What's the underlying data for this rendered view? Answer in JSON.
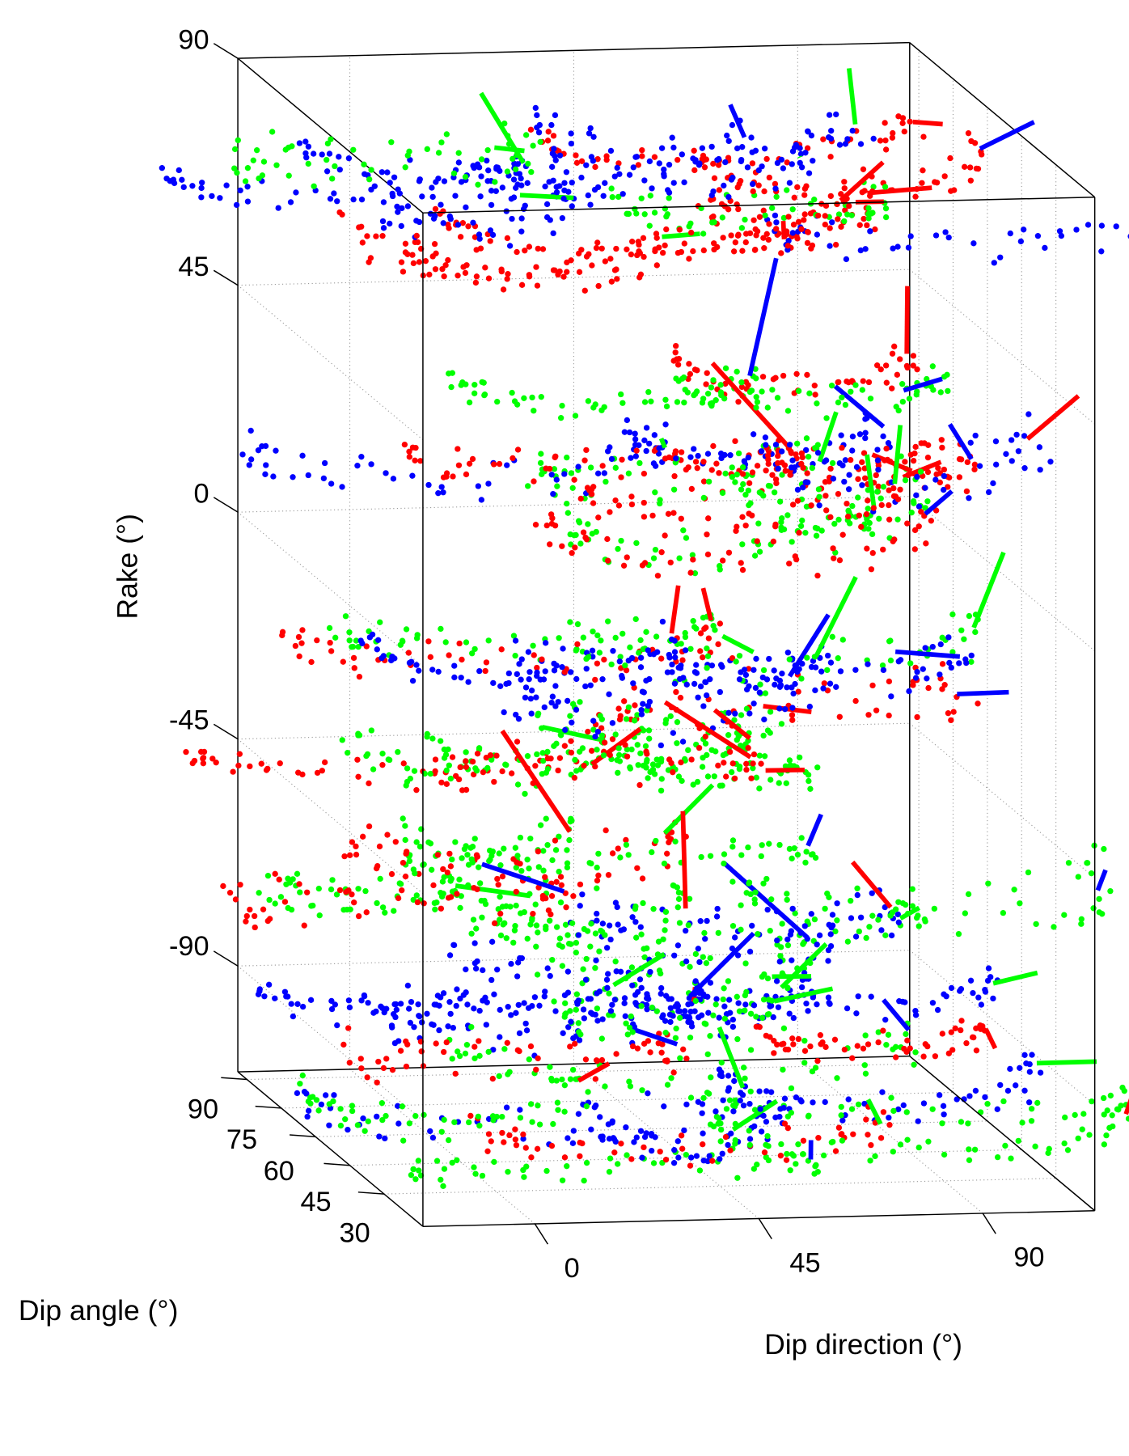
{
  "chart_data": {
    "type": "scatter",
    "projection": "3d",
    "title": "",
    "grid": true,
    "legend": "none",
    "axes": {
      "x": {
        "label": "Dip direction (°)",
        "ticks": [
          0,
          45,
          90
        ],
        "tick_labels": [
          "0",
          "45",
          "90"
        ],
        "range": [
          -22.5,
          112.5
        ]
      },
      "y": {
        "label": "Dip angle (°)",
        "ticks": [
          30,
          45,
          60,
          75,
          90
        ],
        "tick_labels": [
          "30",
          "45",
          "60",
          "75",
          "90"
        ],
        "range": [
          13,
          94
        ]
      },
      "z": {
        "label": "Rake (°)",
        "ticks": [
          -90,
          -45,
          0,
          45,
          90
        ],
        "tick_labels": [
          "-90",
          "-45",
          "0",
          "45",
          "90"
        ],
        "range": [
          -111,
          90
        ]
      }
    },
    "series": [
      {
        "color": "#ff0000"
      },
      {
        "color": "#00ff00"
      },
      {
        "color": "#0000ff"
      }
    ],
    "rake_layers": [
      75,
      25,
      -25,
      -68,
      -100
    ]
  }
}
